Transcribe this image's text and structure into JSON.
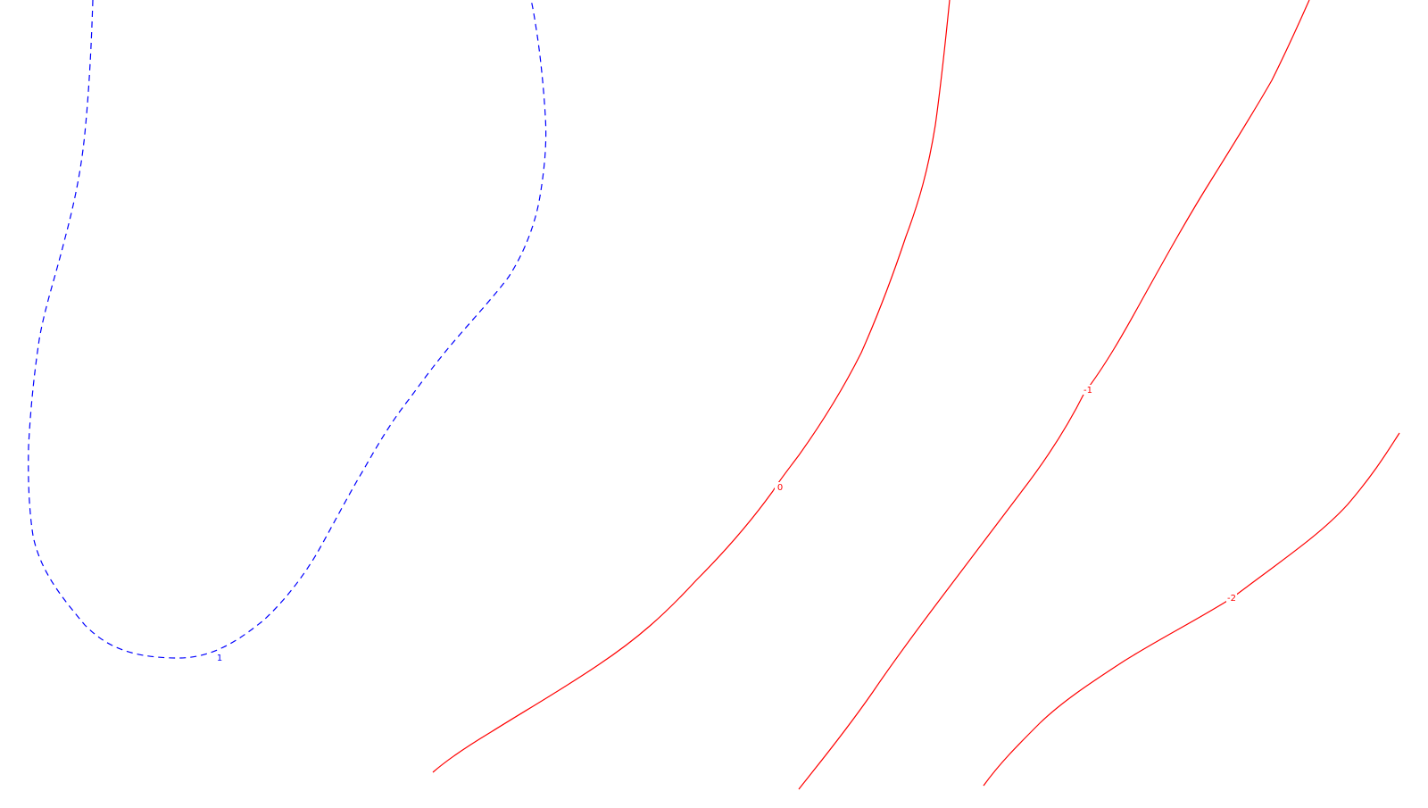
{
  "chart_data": {
    "type": "contour",
    "title": "",
    "xlabel": "",
    "ylabel": "",
    "grid": false,
    "legend": "none",
    "levels": [
      {
        "label": "1",
        "value": 1,
        "color": "#0000ff",
        "style": "dashed"
      },
      {
        "label": "0",
        "value": 0,
        "color": "#ff0000",
        "style": "solid"
      },
      {
        "label": "-1",
        "value": -1,
        "color": "#ff0000",
        "style": "solid"
      },
      {
        "label": "-2",
        "value": -2,
        "color": "#ff0000",
        "style": "solid"
      }
    ]
  }
}
